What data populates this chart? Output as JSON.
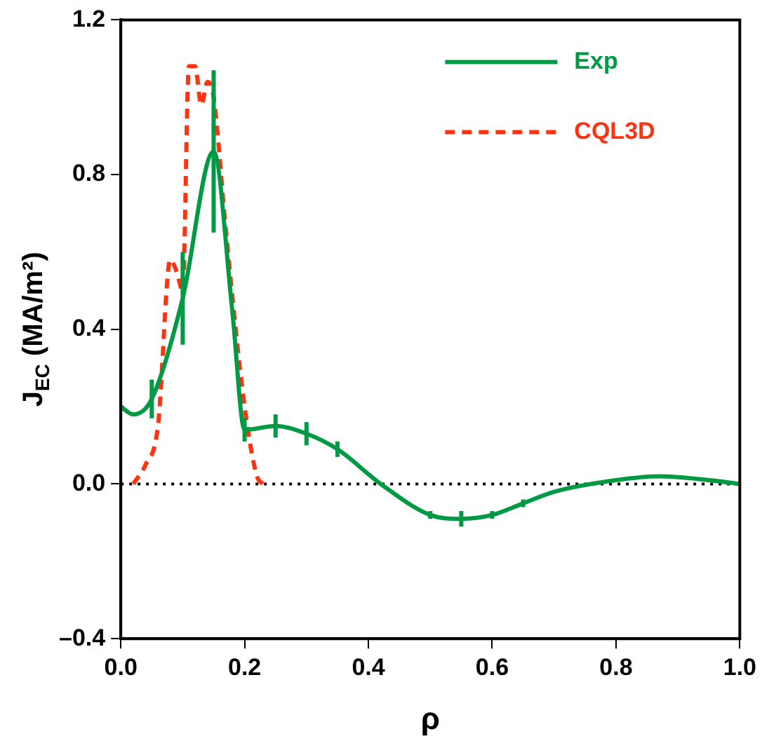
{
  "chart_data": {
    "type": "line",
    "xlabel": "ρ",
    "ylabel": "J$_{EC}$ (MA/m²)",
    "xlim": [
      0,
      1
    ],
    "ylim": [
      -0.4,
      1.2
    ],
    "xticks": [
      {
        "value": 0,
        "label": "0.0"
      },
      0.2,
      0.4,
      0.6,
      0.8,
      {
        "value": 1,
        "label": "1.0"
      }
    ],
    "yticks": [
      {
        "value": -0.4,
        "label": "–0.4"
      },
      {
        "value": 0,
        "label": "0.0"
      },
      0.4,
      0.8,
      1.2
    ],
    "legend": "top right",
    "grid": false,
    "ref_lines": [
      {
        "axis": "y",
        "value": 0,
        "color": "#000000",
        "line_style": "dotted"
      }
    ],
    "series": [
      {
        "name": "Exp",
        "color": "#009944",
        "line_style": "solid",
        "x": [
          0,
          0.02,
          0.05,
          0.1,
          0.15,
          0.18,
          0.2,
          0.25,
          0.3,
          0.35,
          0.42,
          0.5,
          0.55,
          0.6,
          0.65,
          0.7,
          0.8,
          0.87,
          0.95,
          1.0
        ],
        "values": [
          0.2,
          0.18,
          0.22,
          0.48,
          0.86,
          0.45,
          0.14,
          0.15,
          0.13,
          0.09,
          0,
          -0.08,
          -0.09,
          -0.08,
          -0.05,
          -0.02,
          0.01,
          0.02,
          0.01,
          0
        ],
        "errors": [
          null,
          null,
          0.05,
          0.12,
          0.21,
          null,
          0.03,
          0.03,
          0.03,
          0.02,
          null,
          0.01,
          0.02,
          0.01,
          0.01,
          null,
          null,
          null,
          null,
          null
        ]
      },
      {
        "name": "CQL3D",
        "color": "#ff3311",
        "line_style": "dashed",
        "x": [
          0.02,
          0.04,
          0.06,
          0.08,
          0.09,
          0.1,
          0.11,
          0.12,
          0.13,
          0.14,
          0.15,
          0.17,
          0.2,
          0.22,
          0.23
        ],
        "values": [
          0,
          0.05,
          0.15,
          0.58,
          0.55,
          0.5,
          1.08,
          1.08,
          0.98,
          1.04,
          1.0,
          0.65,
          0.2,
          0.02,
          0
        ]
      }
    ]
  }
}
